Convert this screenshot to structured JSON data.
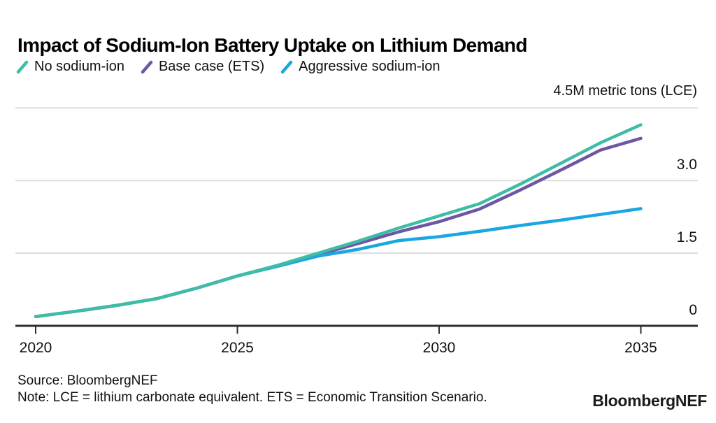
{
  "chart_data": {
    "type": "line",
    "title": "Impact of Sodium-Ion Battery Uptake on Lithium Demand",
    "unit_label": "4.5M metric tons (LCE)",
    "xlabel": "",
    "ylabel": "M metric tons (LCE)",
    "grid": "horizontal",
    "legend_position": "top-left",
    "xlim": [
      2020,
      2035
    ],
    "ylim": [
      0,
      4.5
    ],
    "x": [
      2020,
      2021,
      2022,
      2023,
      2024,
      2025,
      2026,
      2027,
      2028,
      2029,
      2030,
      2031,
      2032,
      2033,
      2034,
      2035
    ],
    "series": [
      {
        "name": "No sodium-ion",
        "color": "#3FBCA4",
        "values": [
          0.19,
          0.3,
          0.42,
          0.56,
          0.78,
          1.03,
          1.25,
          1.5,
          1.75,
          2.02,
          2.27,
          2.52,
          2.92,
          3.35,
          3.78,
          4.15
        ]
      },
      {
        "name": "Base case (ETS)",
        "color": "#6E56A5",
        "values": [
          0.19,
          0.3,
          0.42,
          0.56,
          0.78,
          1.03,
          1.24,
          1.47,
          1.7,
          1.94,
          2.15,
          2.41,
          2.8,
          3.21,
          3.63,
          3.87
        ]
      },
      {
        "name": "Aggressive sodium-ion",
        "color": "#1AA7E0",
        "values": [
          0.19,
          0.3,
          0.42,
          0.56,
          0.78,
          1.03,
          1.23,
          1.44,
          1.58,
          1.76,
          1.84,
          1.95,
          2.07,
          2.18,
          2.3,
          2.42
        ]
      }
    ],
    "x_tick_values": [
      2020,
      2025,
      2030,
      2035
    ],
    "x_tick_labels": [
      "2020",
      "2025",
      "2030",
      "2035"
    ],
    "y_tick_values": [
      3.0,
      1.5,
      0
    ],
    "y_tick_labels": [
      "3.0",
      "1.5",
      "0"
    ],
    "gridline_values": [
      4.5,
      3.0,
      1.5
    ]
  },
  "footer": {
    "source": "Source: BloombergNEF",
    "note": "Note: LCE = lithium carbonate equivalent. ETS = Economic Transition Scenario.",
    "logo": "BloombergNEF"
  },
  "colors": {
    "axis": "#2E2E2E",
    "gridline": "#DDDDDD",
    "text": "#000000"
  }
}
